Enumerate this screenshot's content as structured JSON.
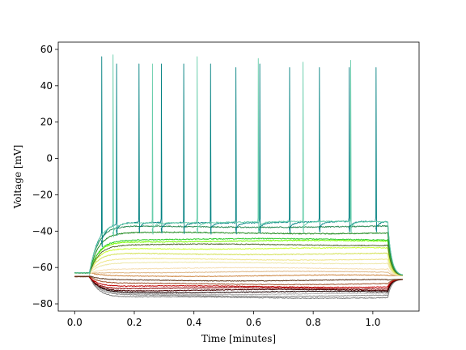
{
  "chart_data": {
    "type": "line",
    "xlabel": "Time [minutes]",
    "ylabel": "Voltage [mV]",
    "xlim": [
      -0.055,
      1.155
    ],
    "ylim": [
      -84,
      64
    ],
    "xticks": [
      0.0,
      0.2,
      0.4,
      0.6,
      0.8,
      1.0
    ],
    "xtick_labels": [
      "0.0",
      "0.2",
      "0.4",
      "0.6",
      "0.8",
      "1.0"
    ],
    "yticks": [
      -80,
      -60,
      -40,
      -20,
      0,
      20,
      40,
      60
    ],
    "ytick_labels": [
      "−80",
      "−60",
      "−40",
      "−20",
      "0",
      "20",
      "40",
      "60"
    ],
    "grid": false,
    "legend": "none",
    "stimulus_window": [
      0.05,
      1.05
    ],
    "series": [
      {
        "color": "#808080",
        "resting_mV": -65,
        "plateau_mV": -76.5
      },
      {
        "color": "#8c8c8c",
        "resting_mV": -65,
        "plateau_mV": -75.5
      },
      {
        "color": "#b0b0b0",
        "resting_mV": -65,
        "plateau_mV": -74.5
      },
      {
        "color": "#1a0000",
        "resting_mV": -65,
        "plateau_mV": -73.5
      },
      {
        "color": "#4a0000",
        "resting_mV": -65,
        "plateau_mV": -72.5
      },
      {
        "color": "#8b0000",
        "resting_mV": -65,
        "plateau_mV": -71.5
      },
      {
        "color": "#c00000",
        "resting_mV": -65,
        "plateau_mV": -70.5
      },
      {
        "color": "#a0522d",
        "resting_mV": -65,
        "plateau_mV": -69.0
      },
      {
        "color": "#5c3317",
        "resting_mV": -65,
        "plateau_mV": -67.0
      },
      {
        "color": "#cd853f",
        "resting_mV": -63,
        "plateau_mV": -64.5
      },
      {
        "color": "#deb887",
        "resting_mV": -63,
        "plateau_mV": -62.5
      },
      {
        "color": "#f5deb3",
        "resting_mV": -63,
        "plateau_mV": -60.5
      },
      {
        "color": "#eee8aa",
        "resting_mV": -63,
        "plateau_mV": -57.5
      },
      {
        "color": "#f0e68c",
        "resting_mV": -63,
        "plateau_mV": -55.5
      },
      {
        "color": "#d4e157",
        "resting_mV": -63,
        "plateau_mV": -52.5
      },
      {
        "color": "#ccff33",
        "resting_mV": -63,
        "plateau_mV": -49.5
      },
      {
        "color": "#7cfc00",
        "resting_mV": -63,
        "plateau_mV": -45.5
      },
      {
        "color": "#32cd32",
        "resting_mV": -63,
        "plateau_mV": -44.5
      },
      {
        "color": "#556b2f",
        "resting_mV": -63,
        "plateau_mV": -47.5
      },
      {
        "color": "#228b22",
        "resting_mV": -63,
        "plateau_mV": -41.0
      },
      {
        "color": "#2e8b57",
        "resting_mV": -63,
        "plateau_mV": -37.5
      },
      {
        "color": "#008080",
        "resting_mV": -63,
        "plateau_mV": -35.0,
        "spike_times": [
          0.09,
          0.14,
          0.215,
          0.29,
          0.365,
          0.455,
          0.54,
          0.62,
          0.72,
          0.82,
          0.92,
          1.01
        ],
        "spike_peaks_mV": [
          56,
          52,
          52,
          52,
          52,
          52,
          50,
          52,
          50,
          50,
          50,
          50
        ]
      },
      {
        "color": "#66cdaa",
        "resting_mV": -63,
        "plateau_mV": -35.0,
        "spike_times": [
          0.128,
          0.26,
          0.41,
          0.615,
          0.765,
          0.925
        ],
        "spike_peaks_mV": [
          57,
          52,
          56,
          55,
          53,
          54
        ]
      }
    ]
  }
}
